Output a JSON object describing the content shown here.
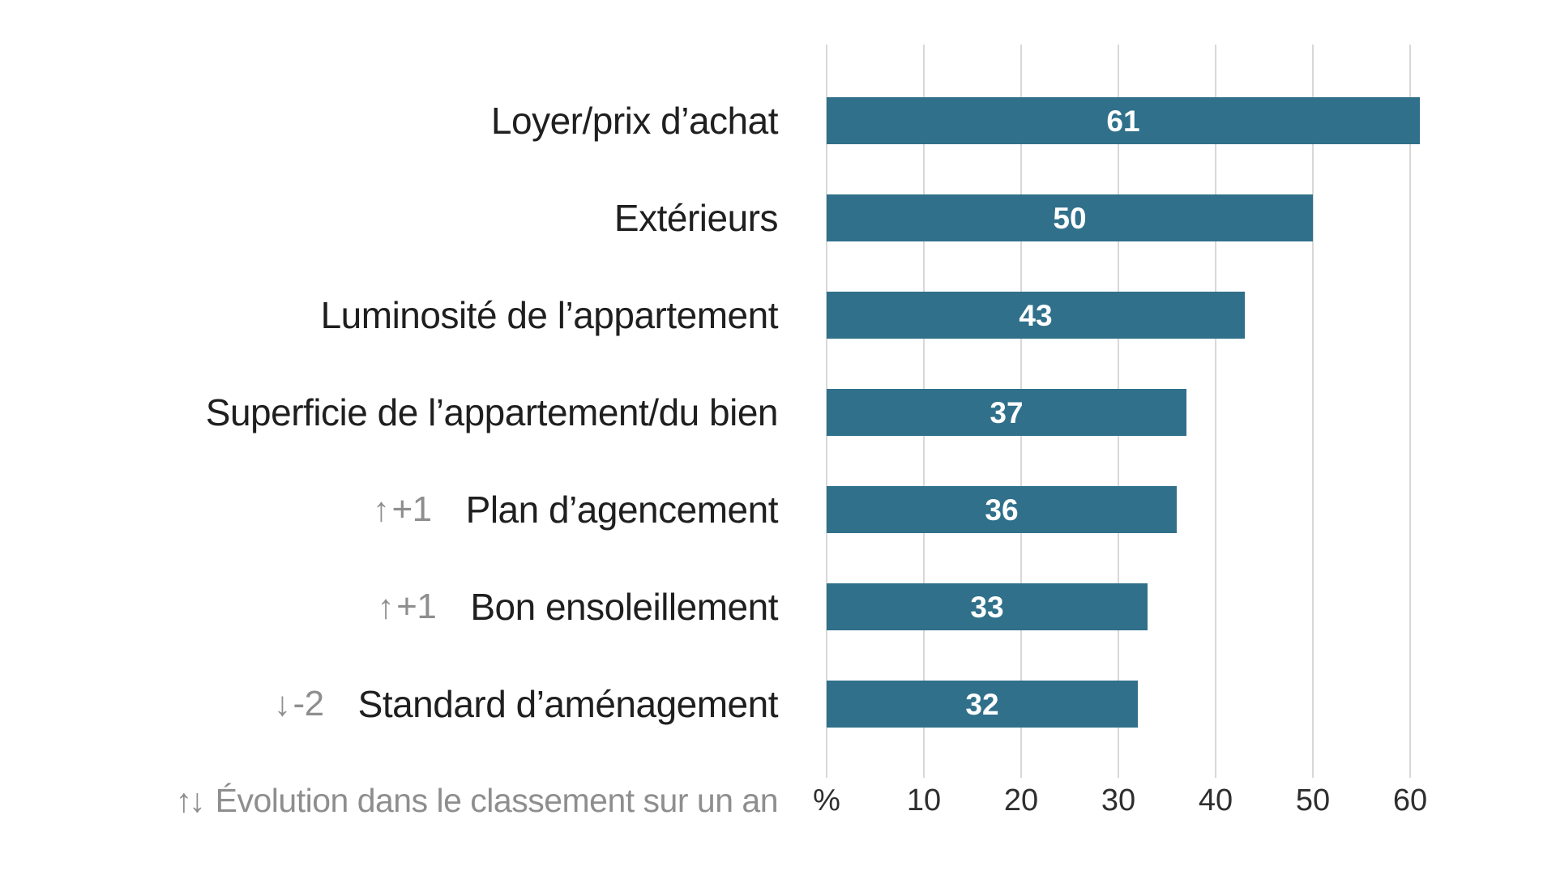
{
  "chart_data": {
    "type": "bar",
    "orientation": "horizontal",
    "title": "",
    "categories": [
      "Loyer/prix d’achat",
      "Extérieurs",
      "Luminosité de l’appartement",
      "Superficie de l’appartement/du bien",
      "Plan d’agencement",
      "Bon ensoleillement",
      "Standard d’aménagement"
    ],
    "values": [
      61,
      50,
      43,
      37,
      36,
      33,
      32
    ],
    "value_unit": "%",
    "rank_arrows": [
      "",
      "",
      "",
      "",
      "↑",
      "↑",
      "↓"
    ],
    "rank_changes": [
      "",
      "",
      "",
      "",
      "+1",
      "+1",
      "-2"
    ],
    "x_ticks": [
      "%",
      "10",
      "20",
      "30",
      "40",
      "50",
      "60"
    ],
    "x_tick_values": [
      0,
      10,
      20,
      30,
      40,
      50,
      60
    ],
    "xlim": [
      0,
      65
    ],
    "grid": true,
    "legend_position": "none",
    "footnote_arrows": "↑↓",
    "footnote_text": "Évolution dans le classement sur un an",
    "colors": {
      "bar": "#30708a",
      "value_label": "#ffffff",
      "category_label": "#1f1f1f",
      "rank_change": "#8e8e8e",
      "axis_label": "#2e2e2e",
      "gridline": "#d8d8d8",
      "footnote": "#8e8e8e",
      "background": "#ffffff"
    }
  }
}
